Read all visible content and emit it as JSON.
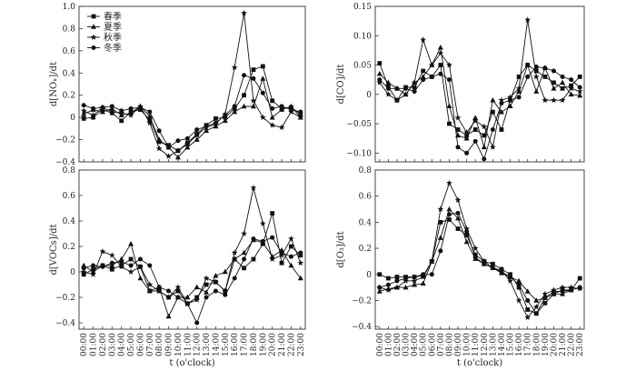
{
  "x_ticks": [
    "00:00",
    "01:00",
    "02:00",
    "03:00",
    "04:00",
    "05:00",
    "06:00",
    "07:00",
    "08:00",
    "09:00",
    "10:00",
    "11:00",
    "12:00",
    "13:00",
    "14:00",
    "15:00",
    "16:00",
    "17:00",
    "18:00",
    "19:00",
    "20:00",
    "21:00",
    "22:00",
    "23:00"
  ],
  "x_axis_title": "t (o'clock)",
  "legend": [
    {
      "name": "春季",
      "marker": "square"
    },
    {
      "name": "夏季",
      "marker": "triangle"
    },
    {
      "name": "秋季",
      "marker": "star"
    },
    {
      "name": "冬季",
      "marker": "circle"
    }
  ],
  "chart_data": [
    {
      "type": "line",
      "ylabel": "d[NOₓ]/dt",
      "ylim": [
        -0.4,
        1.0
      ],
      "yticks": [
        -0.4,
        -0.2,
        0,
        0.2,
        0.4,
        0.6,
        0.8,
        1.0
      ],
      "ytick_labels": [
        "−0.4",
        "−0.2",
        "0",
        "0.2",
        "0.4",
        "0.6",
        "0.8",
        "1.0"
      ],
      "series": [
        {
          "name": "春季",
          "values": [
            -0.01,
            0.0,
            0.07,
            0.04,
            -0.03,
            0.05,
            0.07,
            -0.02,
            -0.22,
            -0.25,
            -0.3,
            -0.23,
            -0.15,
            -0.07,
            -0.01,
            0.0,
            0.08,
            0.2,
            0.43,
            0.46,
            0.15,
            0.08,
            0.09,
            0.03
          ]
        },
        {
          "name": "夏季",
          "values": [
            0.03,
            0.07,
            0.05,
            0.08,
            0.02,
            0.04,
            0.1,
            0.01,
            -0.2,
            -0.27,
            -0.36,
            -0.27,
            -0.2,
            -0.12,
            -0.08,
            -0.03,
            0.05,
            0.1,
            0.1,
            0.35,
            0.0,
            0.07,
            0.1,
            0.0
          ]
        },
        {
          "name": "秋季",
          "values": [
            0.06,
            0.02,
            0.09,
            0.05,
            0.04,
            0.02,
            0.1,
            -0.05,
            -0.28,
            -0.35,
            -0.3,
            -0.24,
            -0.16,
            -0.09,
            -0.06,
            0.03,
            0.45,
            0.94,
            0.15,
            0.0,
            -0.07,
            -0.09,
            0.05,
            0.0
          ]
        },
        {
          "name": "冬季",
          "values": [
            0.11,
            0.08,
            0.09,
            0.1,
            0.06,
            0.08,
            0.09,
            0.05,
            -0.12,
            -0.27,
            -0.21,
            -0.19,
            -0.11,
            -0.08,
            -0.05,
            0.02,
            0.1,
            0.38,
            0.35,
            0.22,
            0.08,
            0.1,
            0.07,
            0.05
          ]
        }
      ]
    },
    {
      "type": "line",
      "ylabel": "d[CO]/dt",
      "ylim": [
        -0.115,
        0.15
      ],
      "yticks": [
        -0.1,
        -0.05,
        0,
        0.05,
        0.1,
        0.15
      ],
      "ytick_labels": [
        "−0.10",
        "−0.05",
        "0",
        "0.05",
        "0.10",
        "0.15"
      ],
      "series": [
        {
          "name": "春季",
          "values": [
            0.053,
            0.013,
            -0.01,
            0.012,
            0.012,
            0.04,
            0.03,
            0.05,
            -0.05,
            -0.06,
            -0.07,
            -0.06,
            -0.07,
            -0.03,
            -0.06,
            -0.01,
            0.03,
            0.05,
            0.04,
            0.03,
            0.02,
            0.01,
            0.015,
            0.03
          ]
        },
        {
          "name": "夏季",
          "values": [
            0.035,
            0.02,
            0.01,
            0.0,
            0.02,
            0.03,
            0.05,
            0.08,
            -0.02,
            -0.07,
            -0.075,
            -0.04,
            -0.09,
            -0.01,
            -0.03,
            -0.02,
            0.005,
            0.05,
            0.005,
            0.045,
            0.01,
            0.02,
            0.0,
            -0.002
          ]
        },
        {
          "name": "秋季",
          "values": [
            0.02,
            0.0,
            -0.01,
            0.0,
            0.02,
            0.093,
            0.05,
            0.07,
            0.05,
            -0.04,
            -0.065,
            -0.045,
            -0.055,
            -0.09,
            -0.01,
            -0.005,
            0.01,
            0.127,
            0.03,
            -0.01,
            -0.01,
            -0.01,
            0.01,
            0.005
          ]
        },
        {
          "name": "冬季",
          "values": [
            0.025,
            0.01,
            0.01,
            0.01,
            0.005,
            0.025,
            0.03,
            0.035,
            0.025,
            -0.09,
            -0.1,
            -0.08,
            -0.11,
            -0.06,
            -0.015,
            -0.01,
            -0.005,
            0.03,
            0.047,
            0.045,
            0.04,
            0.03,
            0.025,
            0.012
          ]
        }
      ]
    },
    {
      "type": "line",
      "ylabel": "d[VOCs]/dt",
      "ylim": [
        -0.45,
        0.8
      ],
      "yticks": [
        -0.4,
        -0.2,
        0,
        0.2,
        0.4,
        0.6,
        0.8
      ],
      "ytick_labels": [
        "−0.4",
        "−0.2",
        "0",
        "0.2",
        "0.4",
        "0.6",
        "0.8"
      ],
      "series": [
        {
          "name": "春季",
          "values": [
            -0.02,
            0.02,
            0.05,
            0.02,
            0.05,
            0.1,
            0.04,
            -0.15,
            -0.15,
            -0.2,
            -0.15,
            -0.25,
            -0.2,
            -0.1,
            -0.08,
            -0.15,
            0.1,
            0.03,
            0.1,
            0.22,
            0.46,
            0.07,
            0.2,
            0.13
          ]
        },
        {
          "name": "夏季",
          "values": [
            0.05,
            0.0,
            0.05,
            0.05,
            0.1,
            0.22,
            -0.05,
            -0.15,
            -0.12,
            -0.35,
            -0.2,
            -0.2,
            -0.12,
            -0.16,
            -0.03,
            0.0,
            0.1,
            0.15,
            0.25,
            0.23,
            0.12,
            0.17,
            0.05,
            -0.05
          ]
        },
        {
          "name": "秋季",
          "values": [
            0.0,
            -0.02,
            0.16,
            0.13,
            0.04,
            0.0,
            0.04,
            -0.1,
            -0.15,
            -0.2,
            -0.12,
            -0.25,
            -0.22,
            -0.05,
            -0.08,
            -0.15,
            0.15,
            0.3,
            0.66,
            0.38,
            0.1,
            0.13,
            0.26,
            0.07
          ]
        },
        {
          "name": "冬季",
          "values": [
            0.03,
            0.05,
            0.04,
            0.07,
            0.08,
            0.05,
            0.1,
            0.05,
            -0.12,
            -0.15,
            -0.2,
            -0.25,
            -0.4,
            -0.2,
            -0.15,
            -0.18,
            -0.05,
            0.1,
            0.26,
            0.24,
            0.27,
            0.15,
            0.12,
            0.15
          ]
        }
      ]
    },
    {
      "type": "line",
      "ylabel": "d[O₃]/dt",
      "ylim": [
        -0.42,
        0.8
      ],
      "yticks": [
        -0.4,
        -0.2,
        0,
        0.2,
        0.4,
        0.6,
        0.8
      ],
      "ytick_labels": [
        "−0.4",
        "−0.2",
        "0",
        "0.2",
        "0.4",
        "0.6",
        "0.8"
      ],
      "series": [
        {
          "name": "春季",
          "values": [
            0.0,
            -0.03,
            -0.02,
            -0.02,
            -0.02,
            -0.01,
            0.1,
            0.4,
            0.42,
            0.35,
            0.3,
            0.15,
            0.1,
            0.08,
            0.04,
            0.0,
            -0.1,
            -0.27,
            -0.3,
            -0.22,
            -0.15,
            -0.12,
            -0.12,
            -0.03
          ]
        },
        {
          "name": "夏季",
          "values": [
            -0.13,
            -0.11,
            -0.1,
            -0.1,
            -0.08,
            -0.07,
            0.1,
            0.28,
            0.5,
            0.43,
            0.25,
            0.12,
            0.08,
            0.05,
            0.01,
            -0.02,
            -0.05,
            -0.13,
            -0.2,
            -0.18,
            -0.15,
            -0.15,
            -0.12,
            -0.1
          ]
        },
        {
          "name": "秋季",
          "values": [
            -0.1,
            -0.12,
            -0.1,
            -0.05,
            -0.05,
            -0.02,
            0.1,
            0.5,
            0.7,
            0.57,
            0.35,
            0.2,
            0.1,
            0.05,
            0.03,
            -0.05,
            -0.2,
            -0.33,
            -0.25,
            -0.15,
            -0.12,
            -0.1,
            -0.1,
            -0.11
          ]
        },
        {
          "name": "冬季",
          "values": [
            -0.1,
            -0.08,
            -0.05,
            -0.03,
            -0.02,
            0.0,
            0.0,
            0.18,
            0.46,
            0.47,
            0.33,
            0.13,
            0.08,
            0.05,
            0.02,
            -0.02,
            -0.08,
            -0.2,
            -0.3,
            -0.18,
            -0.13,
            -0.13,
            -0.12,
            -0.1
          ]
        }
      ]
    }
  ]
}
